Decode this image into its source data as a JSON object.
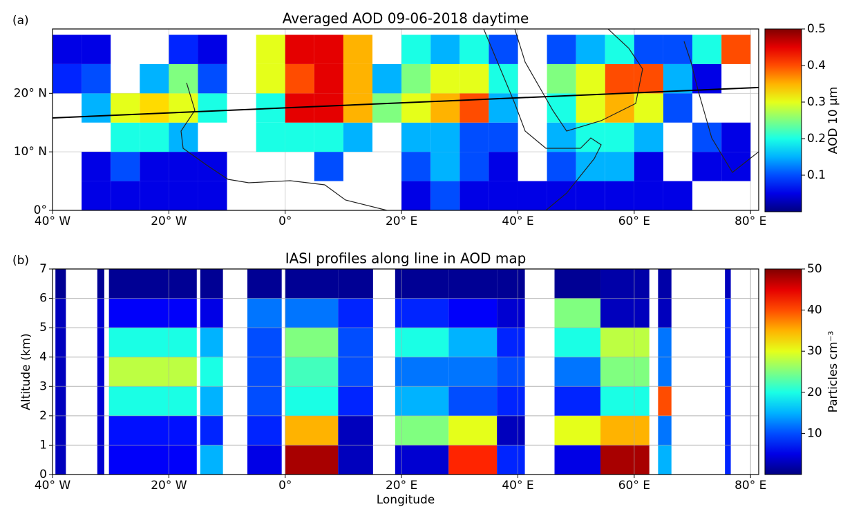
{
  "chart_data": [
    {
      "type": "map-grid",
      "panel_label": "(a)",
      "title": "Averaged AOD 09-06-2018 daytime",
      "colormap": "jet",
      "grid": true,
      "xlim": [
        -40,
        81.4
      ],
      "ylim": [
        0,
        31
      ],
      "xticks": [
        {
          "value": -40,
          "label": "40° W"
        },
        {
          "value": -20,
          "label": "20° W"
        },
        {
          "value": 0,
          "label": "0°"
        },
        {
          "value": 20,
          "label": "20° E"
        },
        {
          "value": 40,
          "label": "40° E"
        },
        {
          "value": 60,
          "label": "60° E"
        },
        {
          "value": 80,
          "label": "80° E"
        }
      ],
      "yticks": [
        {
          "value": 0,
          "label": "0°"
        },
        {
          "value": 10,
          "label": "10° N"
        },
        {
          "value": 20,
          "label": "20° N"
        }
      ],
      "colorbar_label": "AOD 10 μm",
      "clim": [
        0,
        0.5
      ],
      "cticks": [
        0.1,
        0.2,
        0.3,
        0.4,
        0.5
      ],
      "line": {
        "x": [
          -40,
          81.4
        ],
        "y": [
          15.8,
          21
        ]
      },
      "x_edges": [
        -40,
        -35,
        -30,
        -25,
        -20,
        -15,
        -10,
        -5,
        0,
        5,
        10,
        15,
        20,
        25,
        30,
        35,
        40,
        45,
        50,
        55,
        60,
        65,
        70,
        75,
        80
      ],
      "y_edges": [
        0,
        5,
        10,
        15,
        20,
        25,
        30
      ],
      "values": [
        [
          null,
          0.05,
          0.05,
          0.05,
          0.05,
          0.05,
          null,
          null,
          null,
          null,
          null,
          null,
          0.05,
          0.1,
          0.05,
          0.05,
          0.05,
          0.05,
          0.05,
          0.05,
          0.05,
          0.05,
          null,
          null
        ],
        [
          null,
          0.05,
          0.1,
          0.05,
          0.05,
          0.05,
          null,
          null,
          null,
          0.1,
          null,
          null,
          0.1,
          0.15,
          0.1,
          0.05,
          null,
          0.1,
          0.15,
          0.15,
          0.05,
          null,
          0.05,
          0.05
        ],
        [
          null,
          null,
          0.2,
          0.2,
          0.15,
          null,
          null,
          0.2,
          0.2,
          0.2,
          0.15,
          null,
          0.15,
          0.15,
          0.1,
          0.1,
          null,
          0.15,
          0.2,
          0.2,
          0.15,
          null,
          0.1,
          0.05
        ],
        [
          null,
          0.15,
          0.3,
          0.33,
          0.3,
          0.2,
          null,
          0.2,
          0.45,
          0.45,
          0.35,
          0.25,
          0.3,
          0.35,
          0.4,
          0.15,
          null,
          0.2,
          0.3,
          0.35,
          0.3,
          0.1,
          null,
          null
        ],
        [
          0.08,
          0.1,
          null,
          0.15,
          0.25,
          0.1,
          null,
          0.3,
          0.4,
          0.45,
          0.35,
          0.15,
          0.25,
          0.3,
          0.3,
          0.2,
          null,
          0.25,
          0.3,
          0.4,
          0.4,
          0.15,
          0.05,
          null
        ],
        [
          0.05,
          0.05,
          null,
          null,
          0.08,
          0.05,
          null,
          0.3,
          0.45,
          0.45,
          0.35,
          null,
          0.2,
          0.15,
          0.2,
          0.1,
          null,
          0.1,
          0.15,
          0.2,
          0.1,
          0.1,
          0.2,
          0.4
        ]
      ]
    },
    {
      "type": "profile-columns",
      "panel_label": "(b)",
      "title": "IASI profiles along line in AOD map",
      "colormap": "jet",
      "grid": true,
      "xlabel": "Longitude",
      "ylabel": "Altitude (km)",
      "xlim": [
        -40,
        81.4
      ],
      "ylim": [
        0,
        7
      ],
      "xticks": [
        {
          "value": -40,
          "label": "40° W"
        },
        {
          "value": -20,
          "label": "20° W"
        },
        {
          "value": 0,
          "label": "0°"
        },
        {
          "value": 20,
          "label": "20° E"
        },
        {
          "value": 40,
          "label": "40° E"
        },
        {
          "value": 60,
          "label": "60° E"
        },
        {
          "value": 80,
          "label": "80° E"
        }
      ],
      "yticks": [
        0,
        1,
        2,
        3,
        4,
        5,
        6,
        7
      ],
      "colorbar_label": "Particles cm⁻³",
      "clim": [
        0,
        50
      ],
      "cticks": [
        10,
        20,
        30,
        40,
        50
      ],
      "y_edges": [
        0,
        1,
        2,
        3,
        4,
        5,
        6,
        7
      ],
      "x_start": [
        -39.5,
        -32.3,
        -30.3,
        -14.6,
        -6.5,
        0,
        9.1,
        18.9,
        28.1,
        36.4,
        46.3,
        54.2,
        64.1,
        75.6
      ],
      "x_end": [
        -37.7,
        -31.1,
        -15.2,
        -10.7,
        -0.6,
        9.1,
        15.1,
        28.1,
        36.4,
        41.2,
        54.2,
        62.6,
        66.4,
        76.6
      ],
      "values": [
        [
          3,
          3,
          3,
          3,
          3,
          3,
          1
        ],
        [
          4,
          4,
          4,
          4,
          4,
          4,
          1
        ],
        [
          6,
          7,
          20,
          28,
          20,
          6,
          1
        ],
        [
          15,
          8,
          15,
          20,
          15,
          5,
          1
        ],
        [
          5,
          8,
          10,
          10,
          10,
          12,
          1
        ],
        [
          48,
          35,
          20,
          22,
          25,
          12,
          1
        ],
        [
          3,
          3,
          8,
          10,
          10,
          8,
          1
        ],
        [
          4,
          25,
          15,
          12,
          20,
          8,
          1
        ],
        [
          42,
          30,
          10,
          12,
          15,
          6,
          1
        ],
        [
          8,
          3,
          8,
          10,
          8,
          4,
          1
        ],
        [
          5,
          30,
          8,
          12,
          20,
          25,
          1
        ],
        [
          48,
          35,
          20,
          25,
          28,
          3,
          2
        ],
        [
          15,
          12,
          40,
          12,
          12,
          3,
          2
        ],
        [
          8,
          8,
          8,
          8,
          8,
          8,
          3
        ]
      ]
    }
  ]
}
